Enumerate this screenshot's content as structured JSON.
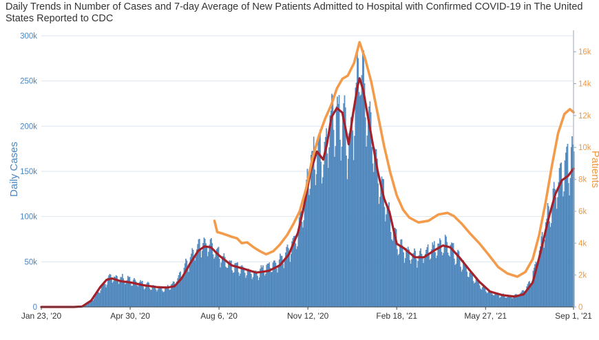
{
  "chart_data": {
    "type": "bar",
    "title": "Daily Trends in Number of Cases and 7-day Average of New Patients Admitted to Hospital with Confirmed COVID-19 in The United States Reported to CDC",
    "y_left_label": "Daily Cases",
    "y_right_label": "Patients",
    "y_left_range": [
      0,
      300000
    ],
    "y_right_range": [
      0,
      17000
    ],
    "y_left_ticks": [
      "0",
      "50k",
      "100k",
      "150k",
      "200k",
      "250k",
      "300k"
    ],
    "y_left_tick_values": [
      0,
      50000,
      100000,
      150000,
      200000,
      250000,
      300000
    ],
    "y_right_ticks": [
      "0",
      "2k",
      "4k",
      "6k",
      "8k",
      "10k",
      "12k",
      "14k",
      "16k"
    ],
    "y_right_tick_values": [
      0,
      2000,
      4000,
      6000,
      8000,
      10000,
      12000,
      14000,
      16000
    ],
    "x_start": "2020-01-23",
    "x_end": "2021-09-01",
    "x_ticks": [
      "Jan 23, '20",
      "Apr 30, '20",
      "Aug 6, '20",
      "Nov 12, '20",
      "Feb 18, '21",
      "May 27, '21",
      "Sep 1, '21"
    ],
    "x_tick_dates": [
      "2020-01-23",
      "2020-04-30",
      "2020-08-06",
      "2020-11-12",
      "2021-02-18",
      "2021-05-27",
      "2021-09-01"
    ],
    "grid": true,
    "colors": {
      "bars": "#5b93c7",
      "bar_edge": "#3b6fa3",
      "cases_avg": "#a3212b",
      "patients": "#f39b4a"
    },
    "series": [
      {
        "kind": "bar",
        "axis": "left",
        "points": [
          [
            "2020-01-23",
            0
          ],
          [
            "2020-03-01",
            0
          ],
          [
            "2020-03-10",
            500
          ],
          [
            "2020-03-20",
            9000
          ],
          [
            "2020-03-28",
            20000
          ],
          [
            "2020-04-05",
            30000
          ],
          [
            "2020-04-12",
            32000
          ],
          [
            "2020-04-25",
            30000
          ],
          [
            "2020-05-10",
            26000
          ],
          [
            "2020-05-25",
            22000
          ],
          [
            "2020-06-05",
            20000
          ],
          [
            "2020-06-15",
            23000
          ],
          [
            "2020-06-25",
            38000
          ],
          [
            "2020-07-05",
            52000
          ],
          [
            "2020-07-15",
            66000
          ],
          [
            "2020-07-25",
            68000
          ],
          [
            "2020-08-05",
            57000
          ],
          [
            "2020-08-20",
            45000
          ],
          [
            "2020-09-05",
            40000
          ],
          [
            "2020-09-15",
            36000
          ],
          [
            "2020-09-25",
            43000
          ],
          [
            "2020-10-05",
            45000
          ],
          [
            "2020-10-15",
            53000
          ],
          [
            "2020-10-25",
            66000
          ],
          [
            "2020-11-01",
            82000
          ],
          [
            "2020-11-08",
            115000
          ],
          [
            "2020-11-15",
            155000
          ],
          [
            "2020-11-22",
            175000
          ],
          [
            "2020-11-29",
            160000
          ],
          [
            "2020-12-05",
            200000
          ],
          [
            "2020-12-12",
            215000
          ],
          [
            "2020-12-20",
            205000
          ],
          [
            "2020-12-28",
            170000
          ],
          [
            "2021-01-03",
            230000
          ],
          [
            "2021-01-08",
            270000
          ],
          [
            "2021-01-12",
            245000
          ],
          [
            "2021-01-20",
            195000
          ],
          [
            "2021-01-28",
            150000
          ],
          [
            "2021-02-05",
            115000
          ],
          [
            "2021-02-12",
            88000
          ],
          [
            "2021-02-20",
            67000
          ],
          [
            "2021-03-01",
            60000
          ],
          [
            "2021-03-15",
            55000
          ],
          [
            "2021-03-28",
            62000
          ],
          [
            "2021-04-10",
            70000
          ],
          [
            "2021-04-20",
            63000
          ],
          [
            "2021-05-01",
            48000
          ],
          [
            "2021-05-15",
            30000
          ],
          [
            "2021-05-27",
            18000
          ],
          [
            "2021-06-10",
            13000
          ],
          [
            "2021-06-25",
            11000
          ],
          [
            "2021-07-05",
            15000
          ],
          [
            "2021-07-15",
            28000
          ],
          [
            "2021-07-25",
            60000
          ],
          [
            "2021-08-05",
            105000
          ],
          [
            "2021-08-15",
            135000
          ],
          [
            "2021-08-25",
            155000
          ],
          [
            "2021-09-01",
            165000
          ]
        ]
      },
      {
        "name": "Daily Cases",
        "kind": "line",
        "axis": "left",
        "points": [
          [
            "2020-01-23",
            0
          ],
          [
            "2020-02-28",
            0
          ],
          [
            "2020-03-08",
            500
          ],
          [
            "2020-03-18",
            7000
          ],
          [
            "2020-03-28",
            22000
          ],
          [
            "2020-04-04",
            30000
          ],
          [
            "2020-04-10",
            31500
          ],
          [
            "2020-04-20",
            28500
          ],
          [
            "2020-05-01",
            27000
          ],
          [
            "2020-05-15",
            24000
          ],
          [
            "2020-05-29",
            22000
          ],
          [
            "2020-06-10",
            21500
          ],
          [
            "2020-06-18",
            23000
          ],
          [
            "2020-06-26",
            32000
          ],
          [
            "2020-07-05",
            48000
          ],
          [
            "2020-07-14",
            62000
          ],
          [
            "2020-07-21",
            67000
          ],
          [
            "2020-07-28",
            66000
          ],
          [
            "2020-08-06",
            57000
          ],
          [
            "2020-08-20",
            46000
          ],
          [
            "2020-09-03",
            42000
          ],
          [
            "2020-09-16",
            38000
          ],
          [
            "2020-09-30",
            40000
          ],
          [
            "2020-10-12",
            46000
          ],
          [
            "2020-10-22",
            58000
          ],
          [
            "2020-11-01",
            82000
          ],
          [
            "2020-11-08",
            113000
          ],
          [
            "2020-11-15",
            150000
          ],
          [
            "2020-11-22",
            172000
          ],
          [
            "2020-11-29",
            163000
          ],
          [
            "2020-12-03",
            180000
          ],
          [
            "2020-12-08",
            210000
          ],
          [
            "2020-12-14",
            220000
          ],
          [
            "2020-12-20",
            215000
          ],
          [
            "2020-12-27",
            180000
          ],
          [
            "2021-01-01",
            215000
          ],
          [
            "2021-01-06",
            245000
          ],
          [
            "2021-01-08",
            253000
          ],
          [
            "2021-01-12",
            240000
          ],
          [
            "2021-01-20",
            195000
          ],
          [
            "2021-01-28",
            150000
          ],
          [
            "2021-02-04",
            120000
          ],
          [
            "2021-02-10",
            105000
          ],
          [
            "2021-02-18",
            70000
          ],
          [
            "2021-02-26",
            65000
          ],
          [
            "2021-03-10",
            55000
          ],
          [
            "2021-03-20",
            55000
          ],
          [
            "2021-04-01",
            63000
          ],
          [
            "2021-04-10",
            68000
          ],
          [
            "2021-04-18",
            66000
          ],
          [
            "2021-04-28",
            55000
          ],
          [
            "2021-05-10",
            40000
          ],
          [
            "2021-05-20",
            28000
          ],
          [
            "2021-06-01",
            17000
          ],
          [
            "2021-06-15",
            13000
          ],
          [
            "2021-06-28",
            11500
          ],
          [
            "2021-07-08",
            14000
          ],
          [
            "2021-07-18",
            27000
          ],
          [
            "2021-07-26",
            58000
          ],
          [
            "2021-08-05",
            100000
          ],
          [
            "2021-08-12",
            125000
          ],
          [
            "2021-08-19",
            140000
          ],
          [
            "2021-08-26",
            145000
          ],
          [
            "2021-09-01",
            153000
          ]
        ]
      },
      {
        "name": "Patients",
        "kind": "line",
        "axis": "right",
        "points": [
          [
            "2020-08-01",
            5400
          ],
          [
            "2020-08-04",
            4700
          ],
          [
            "2020-08-10",
            4600
          ],
          [
            "2020-08-20",
            4400
          ],
          [
            "2020-08-26",
            4300
          ],
          [
            "2020-08-31",
            4000
          ],
          [
            "2020-09-06",
            4050
          ],
          [
            "2020-09-13",
            3750
          ],
          [
            "2020-09-20",
            3500
          ],
          [
            "2020-09-27",
            3300
          ],
          [
            "2020-10-05",
            3500
          ],
          [
            "2020-10-12",
            3900
          ],
          [
            "2020-10-20",
            4500
          ],
          [
            "2020-10-27",
            5200
          ],
          [
            "2020-11-03",
            6000
          ],
          [
            "2020-11-10",
            7400
          ],
          [
            "2020-11-17",
            9300
          ],
          [
            "2020-11-24",
            10700
          ],
          [
            "2020-12-01",
            11800
          ],
          [
            "2020-12-08",
            12700
          ],
          [
            "2020-12-14",
            13700
          ],
          [
            "2020-12-20",
            14300
          ],
          [
            "2020-12-26",
            14500
          ],
          [
            "2021-01-02",
            15300
          ],
          [
            "2021-01-08",
            16600
          ],
          [
            "2021-01-14",
            15600
          ],
          [
            "2021-01-21",
            14100
          ],
          [
            "2021-01-28",
            12100
          ],
          [
            "2021-02-04",
            10100
          ],
          [
            "2021-02-11",
            8400
          ],
          [
            "2021-02-18",
            7000
          ],
          [
            "2021-02-25",
            6100
          ],
          [
            "2021-03-04",
            5600
          ],
          [
            "2021-03-14",
            5300
          ],
          [
            "2021-03-25",
            5400
          ],
          [
            "2021-04-05",
            5800
          ],
          [
            "2021-04-15",
            5900
          ],
          [
            "2021-04-22",
            5700
          ],
          [
            "2021-05-01",
            5200
          ],
          [
            "2021-05-10",
            4600
          ],
          [
            "2021-05-20",
            4000
          ],
          [
            "2021-05-30",
            3300
          ],
          [
            "2021-06-10",
            2500
          ],
          [
            "2021-06-20",
            2100
          ],
          [
            "2021-07-01",
            1900
          ],
          [
            "2021-07-10",
            2200
          ],
          [
            "2021-07-18",
            3000
          ],
          [
            "2021-07-25",
            4500
          ],
          [
            "2021-08-01",
            6500
          ],
          [
            "2021-08-08",
            8800
          ],
          [
            "2021-08-15",
            10900
          ],
          [
            "2021-08-22",
            12100
          ],
          [
            "2021-08-28",
            12400
          ],
          [
            "2021-09-01",
            12200
          ]
        ]
      }
    ]
  }
}
